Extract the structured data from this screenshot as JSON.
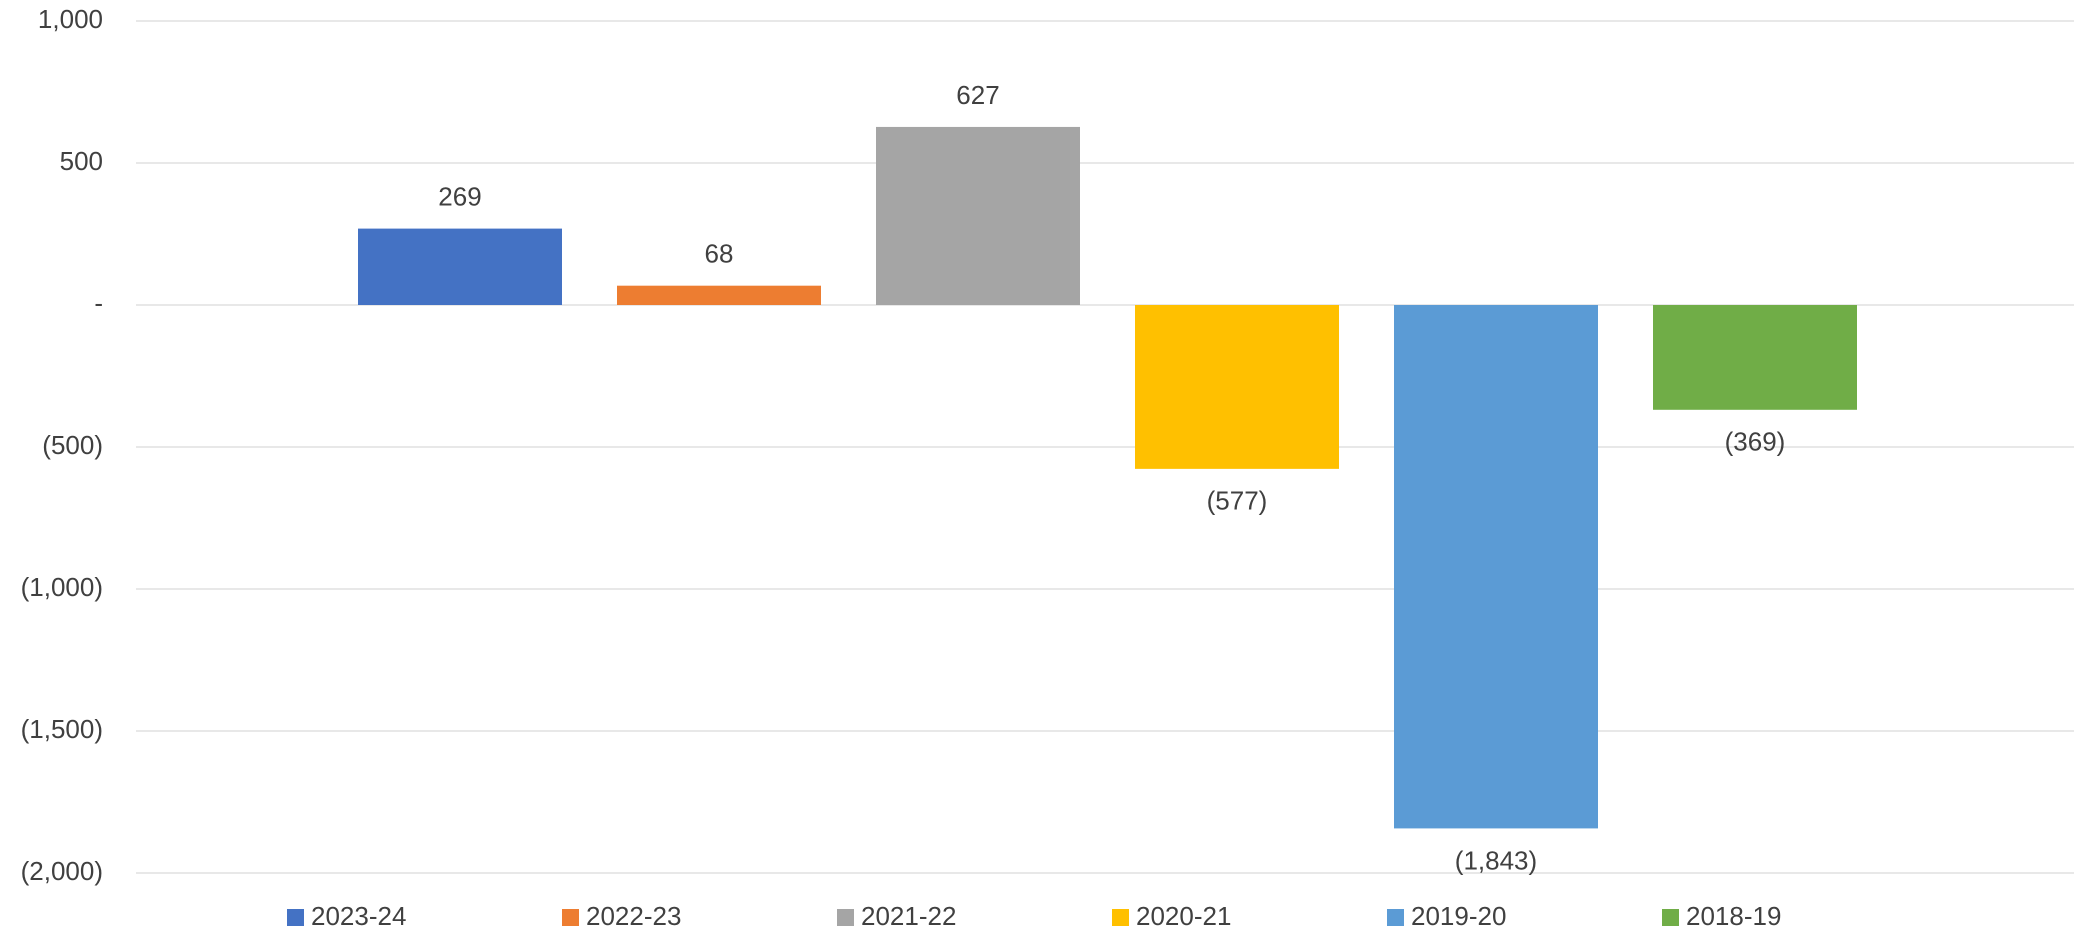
{
  "chart_data": {
    "type": "bar",
    "categories": [
      null
    ],
    "series": [
      {
        "name": "2023-24",
        "color": "#4472c4",
        "values": [
          269
        ],
        "value_labels": [
          "269"
        ]
      },
      {
        "name": "2022-23",
        "color": "#ed7d31",
        "values": [
          68
        ],
        "value_labels": [
          "68"
        ]
      },
      {
        "name": "2021-22",
        "color": "#a5a5a5",
        "values": [
          627
        ],
        "value_labels": [
          "627"
        ]
      },
      {
        "name": "2020-21",
        "color": "#ffc000",
        "values": [
          -577
        ],
        "value_labels": [
          "(577)"
        ]
      },
      {
        "name": "2019-20",
        "color": "#5b9bd5",
        "values": [
          -1843
        ],
        "value_labels": [
          "(1,843)"
        ]
      },
      {
        "name": "2018-19",
        "color": "#70ad47",
        "values": [
          -369
        ],
        "value_labels": [
          "(369)"
        ]
      }
    ],
    "ylim": [
      -2000,
      1000
    ],
    "yticks": [
      {
        "value": 1000,
        "label": "1,000"
      },
      500,
      {
        "value": 0,
        "label": "-"
      },
      {
        "value": -500,
        "label": "(500)"
      },
      {
        "value": -1000,
        "label": "(1,000)"
      },
      {
        "value": -1500,
        "label": "(1,500)"
      },
      {
        "value": -2000,
        "label": "(2,000)"
      }
    ],
    "grid": true,
    "legend": "bottom"
  }
}
